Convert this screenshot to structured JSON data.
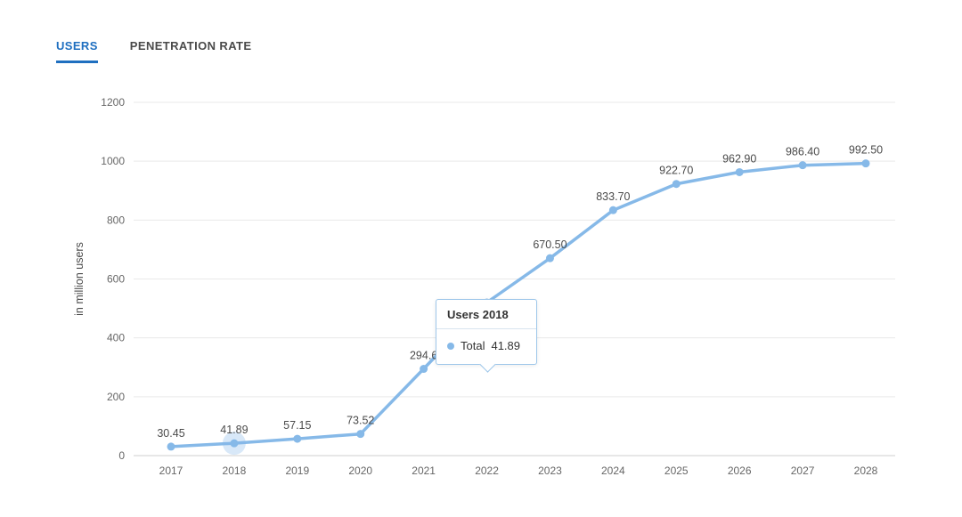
{
  "tabs": [
    {
      "label": "USERS",
      "active": true
    },
    {
      "label": "PENETRATION RATE",
      "active": false
    }
  ],
  "colors": {
    "line": "#86b9e8",
    "tab_active": "#1f6fc0",
    "tooltip_border": "#9ec7ea",
    "grid": "#e9e9e9",
    "axis_text": "#666666",
    "label_text": "#4a4a4a"
  },
  "chart_data": {
    "type": "line",
    "title": "",
    "xlabel": "",
    "ylabel": "in million users",
    "ylim": [
      0,
      1200
    ],
    "ytick_interval": 200,
    "grid": true,
    "legend_position": "none",
    "categories": [
      "2017",
      "2018",
      "2019",
      "2020",
      "2021",
      "2022",
      "2023",
      "2024",
      "2025",
      "2026",
      "2027",
      "2028"
    ],
    "series": [
      {
        "name": "Total",
        "values": [
          30.45,
          41.89,
          57.15,
          73.52,
          294.6,
          520,
          670.5,
          833.7,
          922.7,
          962.9,
          986.4,
          992.5
        ],
        "labels": [
          "30.45",
          "41.89",
          "57.15",
          "73.52",
          "294.6",
          "",
          "670.50",
          "833.70",
          "922.70",
          "962.90",
          "986.40",
          "992.50"
        ]
      }
    ],
    "hover_index": 1,
    "note": "2022 value hidden behind tooltip; estimated from line position"
  },
  "tooltip": {
    "title": "Users 2018",
    "series_label": "Total",
    "value": "41.89"
  }
}
